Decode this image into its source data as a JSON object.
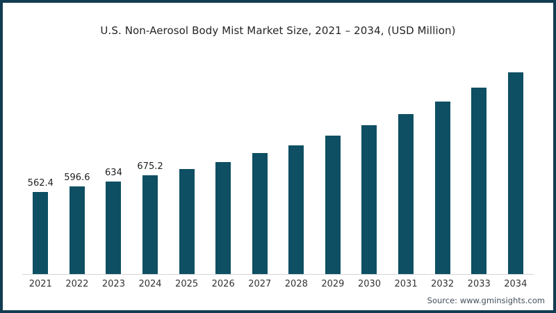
{
  "page": {
    "title": "U.S. Non-Aerosol Body Mist Market Size, 2021 – 2034, (USD Million)",
    "source": "Source: www.gminsights.com"
  },
  "colors": {
    "bar": "#0e4f63",
    "frame_border": "#123c52",
    "axis_line": "#d2d6d9",
    "title_text": "#252525",
    "value_label_text": "#1f1f1f",
    "tick_text": "#333333",
    "source_text": "#44505c"
  },
  "chart_data": {
    "type": "bar",
    "title": "U.S. Non-Aerosol Body Mist Market Size, 2021 – 2034, (USD Million)",
    "categories": [
      "2021",
      "2022",
      "2023",
      "2024",
      "2025",
      "2026",
      "2027",
      "2028",
      "2029",
      "2030",
      "2031",
      "2032",
      "2033",
      "2034"
    ],
    "values": [
      562.4,
      596.6,
      634,
      675.2,
      718,
      766,
      825,
      881,
      945,
      1017,
      1092,
      1176,
      1273,
      1378
    ],
    "value_labels": [
      "562.4",
      "596.6",
      "634",
      "675.2",
      "",
      "",
      "",
      "",
      "",
      "",
      "",
      "",
      "",
      ""
    ],
    "xlabel": "",
    "ylabel": "",
    "ylim": [
      0,
      1425
    ],
    "grid": false,
    "legend": "none",
    "bar_color": "#0e4f63"
  }
}
